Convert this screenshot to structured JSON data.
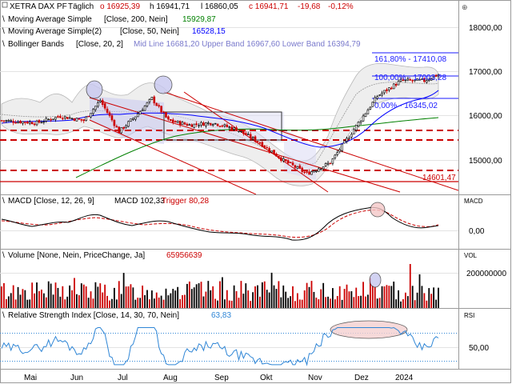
{
  "chart_data": [
    {
      "type": "line",
      "panel": "price",
      "header": {
        "symbol": "XETRA DAX PF",
        "period": "Täglich",
        "open": "o 16925,39",
        "high": "h 16941,71",
        "low": "l 16860,05",
        "close": "c 16941,71",
        "change": "-19,68",
        "change_pct": "-0,12%"
      },
      "indicators": [
        {
          "label": "Moving Average Simple",
          "params": "[Close, 200, Nein]",
          "value": "15929,87",
          "color": "#008000"
        },
        {
          "label": "Moving Average Simple(2)",
          "params": "[Close, 50, Nein]",
          "value": "16528,15",
          "color": "#0000ff"
        },
        {
          "label": "Bollinger Bands",
          "params": "[Close, 20, 2]",
          "value": "Mid Line 16681,20  Upper Band 16967,60  Lower Band 16394,79",
          "color": "#b0b0b0"
        }
      ],
      "yticks": [
        "18000,00",
        "17000,00",
        "16000,00",
        "15000,00"
      ],
      "ylim": [
        14350,
        18500
      ],
      "annotations": [
        "161,80% - 17410,08",
        "100,00% - 17003,28",
        "0,00% - 16345,02",
        "14601,47"
      ],
      "x_months": [
        "Mai",
        "Jun",
        "Jul",
        "Aug",
        "Sep",
        "Okt",
        "Nov",
        "Dez",
        "2024"
      ],
      "series_key_points": {
        "x_days": [
          0,
          15,
          25,
          35,
          42,
          50,
          57,
          64,
          71,
          80,
          90,
          100,
          110,
          120,
          130,
          140,
          150,
          160,
          170,
          180,
          186
        ],
        "close": [
          15900,
          15850,
          16000,
          15900,
          16350,
          15650,
          16000,
          16400,
          15900,
          15800,
          15850,
          15700,
          15400,
          15000,
          14700,
          14950,
          15700,
          16450,
          16800,
          16800,
          16941.71
        ]
      },
      "horizontal_levels": [
        15700,
        15480,
        14800,
        14601.47
      ]
    },
    {
      "type": "line",
      "panel": "macd",
      "label": "MACD [Close, 12, 26, 9]",
      "macd_value": "MACD 102,33",
      "trigger_value": "Trigger 80,28",
      "ytick": "0,00",
      "axis_label": "MACD"
    },
    {
      "type": "bar",
      "panel": "volume",
      "label": "Volume [None, Nein, PriceChange, Ja]",
      "value": "65956639",
      "ytick": "200000000",
      "axis_label": "VOL"
    },
    {
      "type": "line",
      "panel": "rsi",
      "label": "Relative Strength Index [Close, 14, 30, 70, Nein]",
      "value": "63,83",
      "ytick": "50,00",
      "axis_label": "RSI",
      "levels": [
        30,
        70
      ]
    }
  ],
  "colors": {
    "price": "#000000",
    "up": "#000000",
    "down": "#cc0000",
    "sma200": "#008000",
    "sma50": "#0000ff",
    "bollinger": "#b0b0b0",
    "channel": "#cc0000",
    "rsi": "#2f86d6",
    "fib": "#1a1aff"
  }
}
